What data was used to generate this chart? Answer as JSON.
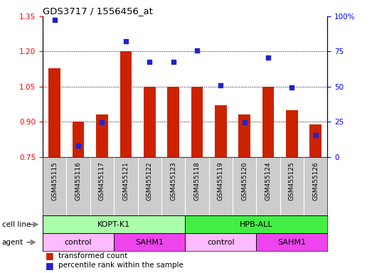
{
  "title": "GDS3717 / 1556456_at",
  "samples": [
    "GSM455115",
    "GSM455116",
    "GSM455117",
    "GSM455121",
    "GSM455122",
    "GSM455123",
    "GSM455118",
    "GSM455119",
    "GSM455120",
    "GSM455124",
    "GSM455125",
    "GSM455126"
  ],
  "red_values": [
    1.13,
    0.9,
    0.93,
    1.2,
    1.05,
    1.05,
    1.05,
    0.97,
    0.93,
    1.05,
    0.95,
    0.89
  ],
  "blue_dot_y": [
    1.335,
    0.797,
    0.898,
    1.245,
    1.155,
    1.155,
    1.205,
    1.055,
    0.898,
    1.175,
    1.047,
    0.843
  ],
  "ylim_left": [
    0.75,
    1.35
  ],
  "ylim_right": [
    0,
    100
  ],
  "yticks_left": [
    0.75,
    0.9,
    1.05,
    1.2,
    1.35
  ],
  "yticks_right": [
    0,
    25,
    50,
    75,
    100
  ],
  "ytick_labels_right": [
    "0",
    "25",
    "50",
    "75",
    "100%"
  ],
  "bar_bottom": 0.75,
  "bar_color": "#CC2200",
  "dot_color": "#2222CC",
  "cell_line_groups": [
    {
      "label": "KOPT-K1",
      "start": 0,
      "end": 6,
      "color": "#AAFFAA"
    },
    {
      "label": "HPB-ALL",
      "start": 6,
      "end": 12,
      "color": "#44EE44"
    }
  ],
  "agent_groups": [
    {
      "label": "control",
      "start": 0,
      "end": 3,
      "color": "#FFBBFF"
    },
    {
      "label": "SAHM1",
      "start": 3,
      "end": 6,
      "color": "#EE44EE"
    },
    {
      "label": "control",
      "start": 6,
      "end": 9,
      "color": "#FFBBFF"
    },
    {
      "label": "SAHM1",
      "start": 9,
      "end": 12,
      "color": "#EE44EE"
    }
  ]
}
